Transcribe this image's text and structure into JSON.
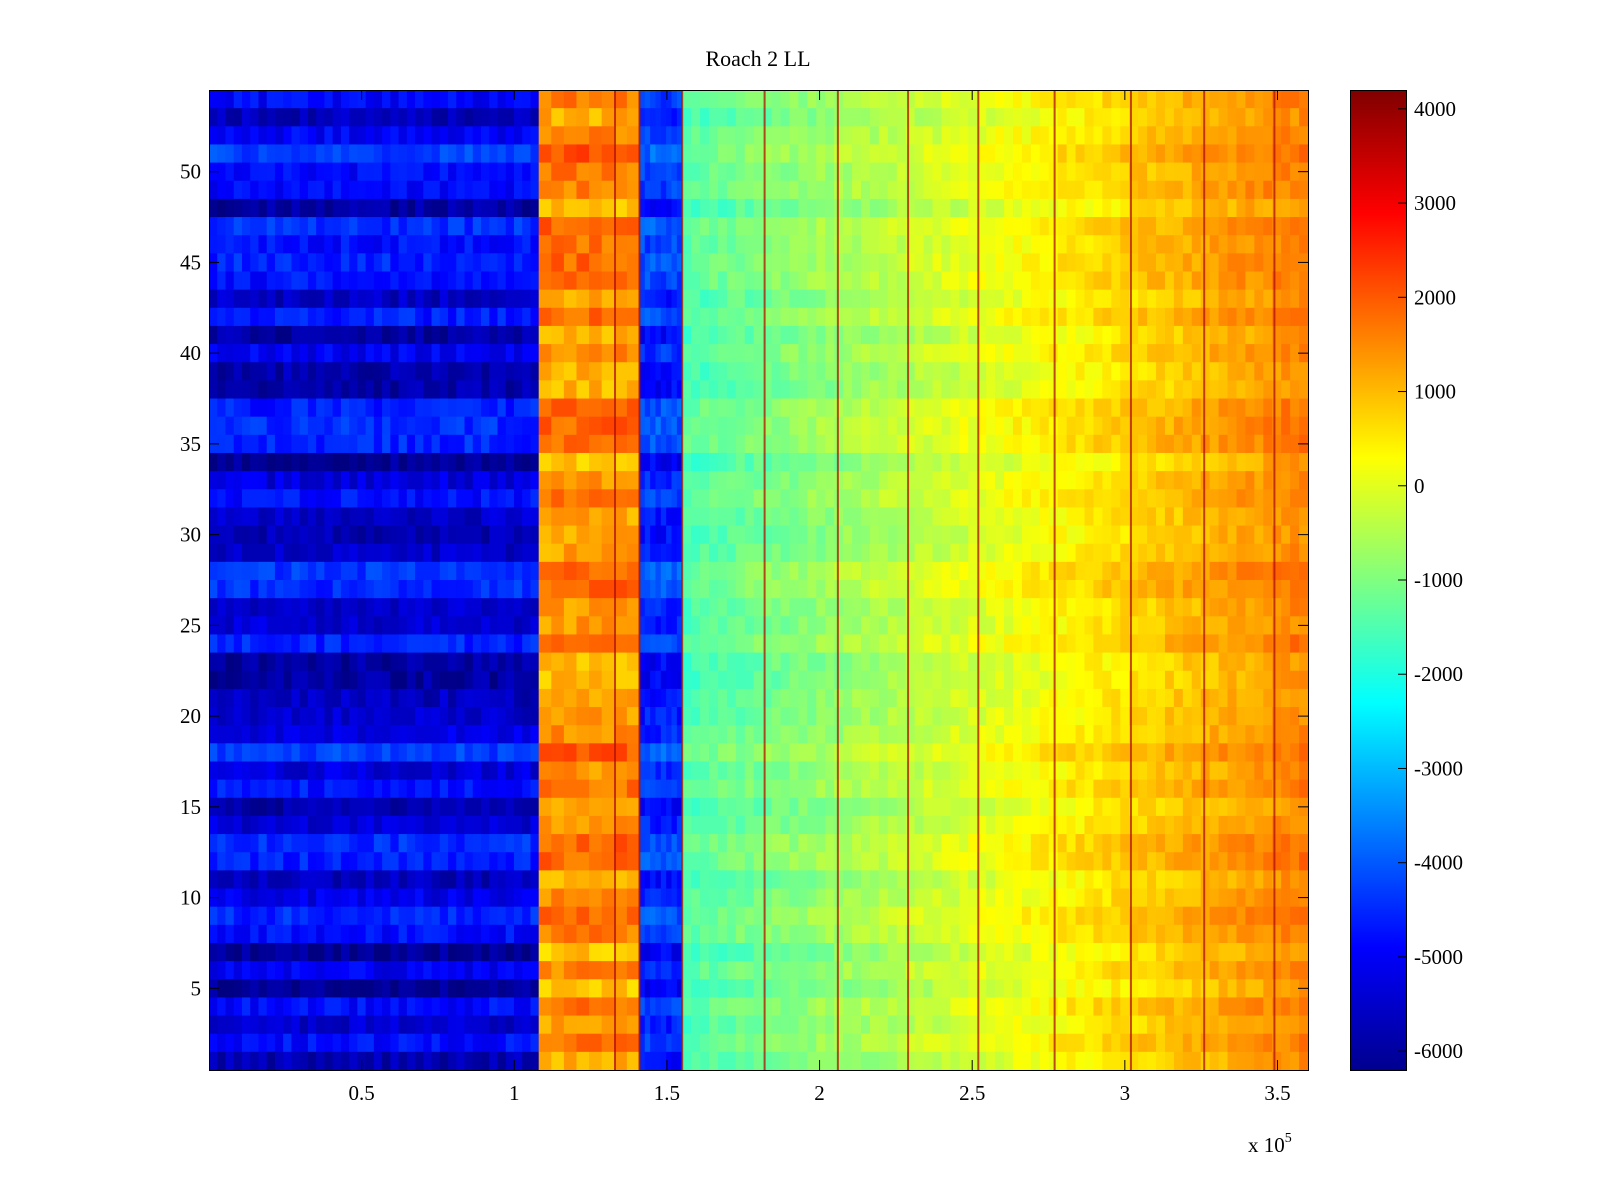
{
  "chart_data": {
    "type": "heatmap",
    "title": "Roach 2 LL",
    "xlabel": "",
    "ylabel": "",
    "x_multiplier_label": "x 10",
    "x_multiplier_exponent": "5",
    "xlim": [
      0,
      360000
    ],
    "ylim": [
      0.5,
      54.5
    ],
    "x_ticks": [
      0.5,
      1,
      1.5,
      2,
      2.5,
      3,
      3.5
    ],
    "x_tick_labels": [
      "0.5",
      "1",
      "1.5",
      "2",
      "2.5",
      "3",
      "3.5"
    ],
    "y_ticks": [
      5,
      10,
      15,
      20,
      25,
      30,
      35,
      40,
      45,
      50
    ],
    "y_tick_labels": [
      "5",
      "10",
      "15",
      "20",
      "25",
      "30",
      "35",
      "40",
      "45",
      "50"
    ],
    "rows": 54,
    "colormap": "jet",
    "clim": [
      -6200,
      4200
    ],
    "colorbar_ticks": [
      4000,
      3000,
      2000,
      1000,
      0,
      -1000,
      -2000,
      -3000,
      -4000,
      -5000,
      -6000
    ],
    "colorbar_tick_labels": [
      "4000",
      "3000",
      "2000",
      "1000",
      "0",
      "-1000",
      "-2000",
      "-3000",
      "-4000",
      "-5000",
      "-6000"
    ],
    "regions": [
      {
        "x": [
          0,
          108000
        ],
        "description": "low band",
        "value": -5200
      },
      {
        "x": [
          108000,
          141000
        ],
        "description": "high band",
        "value": 1400
      },
      {
        "x": [
          141000,
          155000
        ],
        "description": "low band",
        "value": -4500
      },
      {
        "x": [
          155000,
          360000
        ],
        "description": "ramp",
        "value_start": -1500,
        "value_end": 1600
      }
    ],
    "vertical_lines_x": [
      133000,
      141000,
      155000,
      182000,
      206000,
      229000,
      252000,
      277000,
      302000,
      326000,
      349000
    ]
  }
}
